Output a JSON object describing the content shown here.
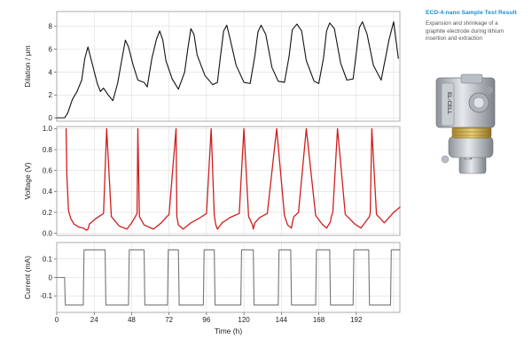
{
  "sidebar": {
    "title": "ECD-4-nano Sample Test Result",
    "description": "Expansion and shrinkage of a graphite electrode during lithium insertion and extraction",
    "product_label": "EL-CELL",
    "product_icon": "electrochemical-test-cell-icon"
  },
  "chart_data": [
    {
      "type": "line",
      "name": "dilation-panel",
      "ylabel": "Dilation / μm",
      "ylim": [
        -0.3,
        9.3
      ],
      "yticks": [
        0,
        2,
        4,
        6,
        8
      ],
      "xlim": [
        0,
        220
      ],
      "grid": true,
      "series": [
        {
          "color": "#111111",
          "x": [
            0,
            5,
            7,
            10,
            13,
            16,
            18,
            20,
            23,
            26,
            28,
            30,
            33,
            36,
            39,
            42,
            44,
            46,
            49,
            52,
            56,
            58,
            61,
            64,
            66,
            68,
            70,
            74,
            78,
            82,
            84,
            86,
            88,
            90,
            95,
            100,
            103,
            105,
            107,
            109,
            111,
            115,
            120,
            124,
            127,
            129,
            131,
            134,
            138,
            142,
            146,
            149,
            151,
            154,
            157,
            160,
            165,
            168,
            171,
            173,
            175,
            178,
            182,
            186,
            190,
            192,
            194,
            196,
            199,
            203,
            208,
            213,
            216,
            219
          ],
          "y": [
            0,
            0,
            0.4,
            1.6,
            2.3,
            3.3,
            5.2,
            6.2,
            4.6,
            3.0,
            2.3,
            2.6,
            2.0,
            1.5,
            3.0,
            5.3,
            6.8,
            6.2,
            4.6,
            3.3,
            3.1,
            2.7,
            5.2,
            6.9,
            7.6,
            6.8,
            5.0,
            3.4,
            2.5,
            4.0,
            6.0,
            7.8,
            7.3,
            5.5,
            3.7,
            2.9,
            3.1,
            5.4,
            7.6,
            8.1,
            7.0,
            4.6,
            3.1,
            3.0,
            5.4,
            7.5,
            8.1,
            7.3,
            4.4,
            3.2,
            3.1,
            5.4,
            7.7,
            8.2,
            7.6,
            5.0,
            3.2,
            3.0,
            5.2,
            7.6,
            8.3,
            7.8,
            4.8,
            3.3,
            3.4,
            5.6,
            7.9,
            8.4,
            7.3,
            4.6,
            3.3,
            6.8,
            8.4,
            5.2
          ]
        }
      ]
    },
    {
      "type": "line",
      "name": "voltage-panel",
      "ylabel": "Voltage (V)",
      "ylim": [
        -0.02,
        1.02
      ],
      "yticks": [
        0.0,
        0.2,
        0.4,
        0.6,
        0.8,
        1.0
      ],
      "ytick_labels": [
        "0.0",
        "0.2",
        "0.4",
        "0.6",
        "0.8",
        "1.0"
      ],
      "xlim": [
        0,
        220
      ],
      "grid": true,
      "series": [
        {
          "color": "#d01e1e",
          "x": [
            6,
            6.5,
            7.5,
            9,
            11,
            14,
            17,
            18,
            19,
            20,
            21,
            25,
            30,
            32,
            35,
            40,
            45,
            48,
            50,
            51.5,
            52,
            53,
            56,
            62,
            67,
            70,
            72,
            76.5,
            77,
            78,
            81,
            86,
            92,
            96,
            99,
            101,
            102,
            103,
            106,
            111,
            117,
            120,
            123,
            125.5,
            126,
            127,
            130,
            135,
            141,
            146,
            148,
            150.5,
            151,
            152,
            155,
            160,
            166,
            170,
            173,
            175.5,
            176,
            177,
            180,
            185,
            191,
            195,
            198,
            200.5,
            201,
            202,
            205,
            210,
            216,
            220
          ],
          "y": [
            1.0,
            0.55,
            0.22,
            0.14,
            0.09,
            0.06,
            0.05,
            0.04,
            0.03,
            0.04,
            0.09,
            0.14,
            0.19,
            1.0,
            0.16,
            0.07,
            0.04,
            0.1,
            0.15,
            0.19,
            1.0,
            0.16,
            0.08,
            0.04,
            0.1,
            0.15,
            0.18,
            1.0,
            0.16,
            0.08,
            0.04,
            0.1,
            0.15,
            0.19,
            1.0,
            0.17,
            0.08,
            0.04,
            0.1,
            0.15,
            0.19,
            1.0,
            0.16,
            0.08,
            0.04,
            0.1,
            0.15,
            0.19,
            1.0,
            0.17,
            0.08,
            0.05,
            0.1,
            0.16,
            0.2,
            1.0,
            0.17,
            0.09,
            0.05,
            0.11,
            0.16,
            0.2,
            1.0,
            0.18,
            0.09,
            0.05,
            0.11,
            0.16,
            0.2,
            1.0,
            0.18,
            0.1,
            0.2,
            0.25
          ]
        }
      ]
    },
    {
      "type": "line",
      "name": "current-panel",
      "ylabel": "Current (mA)",
      "ylim": [
        -0.19,
        0.19
      ],
      "yticks": [
        -0.1,
        0.0,
        0.1
      ],
      "ytick_labels": [
        "-0.1",
        "0",
        "0.1"
      ],
      "xlim": [
        0,
        220
      ],
      "xlabel": "Time (h)",
      "xticks": [
        0,
        24,
        48,
        72,
        96,
        120,
        144,
        168,
        192
      ],
      "grid": true,
      "series": [
        {
          "color": "#777777",
          "x": [
            0,
            5,
            5.5,
            17,
            17.5,
            31,
            31.5,
            46,
            46.5,
            56,
            56.5,
            71,
            71.5,
            78,
            78.5,
            94,
            94.5,
            101,
            101.5,
            118,
            118.5,
            126,
            126.5,
            142,
            142.5,
            150,
            150.5,
            166,
            166.5,
            175,
            175.5,
            190,
            190.5,
            200,
            200.5,
            214,
            214.5,
            220
          ],
          "y": [
            0,
            0,
            -0.15,
            -0.15,
            0.15,
            0.15,
            -0.15,
            -0.15,
            0.15,
            0.15,
            -0.15,
            -0.15,
            0.15,
            0.15,
            -0.15,
            -0.15,
            0.15,
            0.15,
            -0.15,
            -0.15,
            0.15,
            0.15,
            -0.15,
            -0.15,
            0.15,
            0.15,
            -0.15,
            -0.15,
            0.15,
            0.15,
            -0.15,
            -0.15,
            0.15,
            0.15,
            -0.15,
            -0.15,
            0.15,
            0.15
          ]
        }
      ]
    }
  ]
}
